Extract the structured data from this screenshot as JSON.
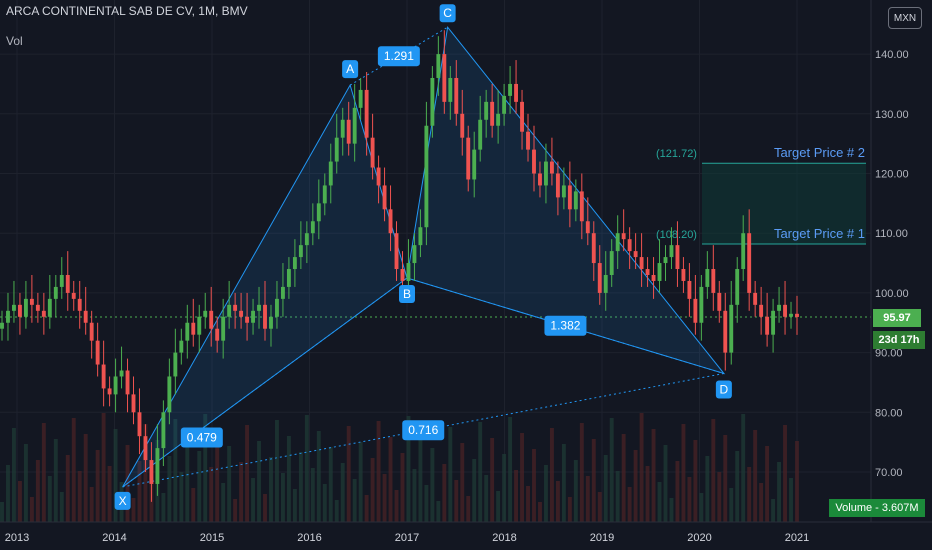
{
  "header": {
    "title": "ARCA CONTINENTAL SAB DE CV, 1M, BMV",
    "indicator": "Vol",
    "currency": "MXN"
  },
  "badges": {
    "last_price": "95.97",
    "countdown": "23d 17h",
    "volume": "Volume - 3.607M"
  },
  "colors": {
    "background": "#131722",
    "up": "#26a69a",
    "up_candle": "#4caf50",
    "down_candle": "#ef5350",
    "pattern_line": "#2196f3",
    "pattern_label": "#2196f3",
    "target_text": "#5b9cf6",
    "price_line": "#4caf50"
  },
  "chart_data": {
    "type": "candlestick",
    "title": "ARCA CONTINENTAL SAB DE CV, 1M, BMV",
    "ylim": [
      65,
      147
    ],
    "yticks": [
      "70.00",
      "80.00",
      "90.00",
      "100.00",
      "110.00",
      "120.00",
      "130.00",
      "140.00"
    ],
    "xticks": [
      "2013",
      "2014",
      "2015",
      "2016",
      "2017",
      "2018",
      "2019",
      "2020",
      "2021"
    ],
    "grid": true,
    "last_price": 95.97,
    "pattern_points": [
      {
        "label": "X",
        "date": "2014-02",
        "price": 67.5
      },
      {
        "label": "A",
        "date": "2016-06",
        "price": 134.8
      },
      {
        "label": "B",
        "date": "2017-01",
        "price": 102.5
      },
      {
        "label": "C",
        "date": "2017-06",
        "price": 144.5
      },
      {
        "label": "D",
        "date": "2020-04",
        "price": 86.5
      }
    ],
    "ratios": [
      {
        "label": "1.291",
        "between": "A-C"
      },
      {
        "label": "0.479",
        "between": "X-B"
      },
      {
        "label": "1.382",
        "between": "B-D"
      },
      {
        "label": "0.716",
        "between": "X-D"
      }
    ],
    "targets": [
      {
        "name": "Target Price # 1",
        "value": "(108.20)",
        "price": 108.2
      },
      {
        "name": "Target Price # 2",
        "value": "(121.72)",
        "price": 121.72
      }
    ],
    "candles_close": [
      95,
      97,
      98,
      96,
      99,
      98,
      97,
      96,
      99,
      101,
      103,
      100,
      99,
      97,
      95,
      92,
      88,
      84,
      83,
      86,
      87,
      83,
      80,
      76,
      72,
      68,
      74,
      80,
      86,
      90,
      92,
      95,
      93,
      96,
      97,
      94,
      92,
      96,
      98,
      97,
      96,
      95,
      97,
      98,
      94,
      96,
      99,
      101,
      104,
      106,
      108,
      110,
      112,
      115,
      118,
      122,
      126,
      129,
      125,
      131,
      134,
      126,
      121,
      118,
      114,
      110,
      104,
      102,
      105,
      108,
      111,
      128,
      136,
      140,
      132,
      136,
      130,
      126,
      119,
      124,
      129,
      132,
      128,
      130,
      133,
      135,
      132,
      127,
      124,
      120,
      118,
      122,
      120,
      116,
      118,
      114,
      117,
      112,
      110,
      105,
      100,
      103,
      107,
      110,
      109,
      107,
      106,
      104,
      103,
      102,
      105,
      106,
      108,
      104,
      102,
      99,
      95,
      101,
      104,
      100,
      97,
      90,
      98,
      104,
      110,
      100,
      98,
      96,
      93,
      97,
      98,
      96,
      96.5,
      95.97
    ],
    "volume_note": "Volume - 3.607M"
  }
}
